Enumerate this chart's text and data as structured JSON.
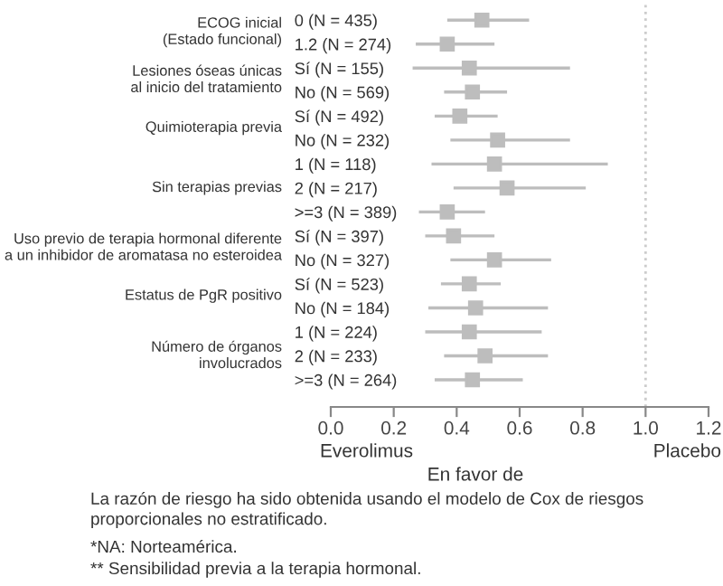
{
  "chart_data": {
    "type": "scatter",
    "orientation": "horizontal",
    "marker": "square",
    "color": "#bdbdbd",
    "categories": [
      "0 (N = 435)",
      "1.2 (N = 274)",
      "Sí (N = 155)",
      "No (N = 569)",
      "Sí (N = 492)",
      "No (N = 232)",
      "1 (N = 118)",
      "2 (N = 217)",
      ">=3 (N = 389)",
      "Sí (N = 397)",
      "No (N = 327)",
      "Sí (N = 523)",
      "No (N = 184)",
      "1 (N = 224)",
      "2 (N = 233)",
      ">=3 (N = 264)"
    ],
    "values": [
      0.48,
      0.37,
      0.44,
      0.45,
      0.41,
      0.53,
      0.52,
      0.56,
      0.37,
      0.39,
      0.52,
      0.44,
      0.46,
      0.44,
      0.49,
      0.45
    ],
    "errors": [
      [
        0.37,
        0.63
      ],
      [
        0.27,
        0.52
      ],
      [
        0.26,
        0.76
      ],
      [
        0.36,
        0.56
      ],
      [
        0.33,
        0.53
      ],
      [
        0.38,
        0.76
      ],
      [
        0.32,
        0.88
      ],
      [
        0.39,
        0.81
      ],
      [
        0.28,
        0.49
      ],
      [
        0.3,
        0.52
      ],
      [
        0.38,
        0.7
      ],
      [
        0.35,
        0.54
      ],
      [
        0.31,
        0.69
      ],
      [
        0.3,
        0.67
      ],
      [
        0.36,
        0.69
      ],
      [
        0.33,
        0.61
      ]
    ],
    "xlim": [
      0,
      1.2
    ],
    "xticks": [
      {
        "value": 0,
        "label": "0.0"
      },
      {
        "value": 0.2,
        "label": "0.2"
      },
      {
        "value": 0.4,
        "label": "0.4"
      },
      {
        "value": 0.6,
        "label": "0.6"
      },
      {
        "value": 0.8,
        "label": "0.8"
      },
      {
        "value": 1.0,
        "label": "1.0"
      },
      {
        "value": 1.2,
        "label": "1.2"
      }
    ],
    "ref_lines": [
      {
        "axis": "x",
        "value": 1.0,
        "color": "#cccccc",
        "line_style": "dotted"
      }
    ],
    "grid": false,
    "legend": false,
    "annotations": [
      "ECOG inicial\n(Estado funcional)",
      "Lesiones óseas únicas\nal inicio del tratamiento",
      "Quimioterapia previa",
      "Sin terapias previas",
      "Uso previo de terapia hormonal diferente\na un inhibidor de aromatasa no esteroidea",
      "Estatus de PgR positivo",
      "Número de órganos\ninvolucrados",
      "Everolimus",
      "Placebo",
      "En favor de",
      "La razón de riesgo ha sido obtenida usando el modelo de Cox de riesgos\nproporcionales no estratificado.",
      "*NA: Norteamérica.",
      "** Sensibilidad previa a la terapia hormonal."
    ]
  }
}
